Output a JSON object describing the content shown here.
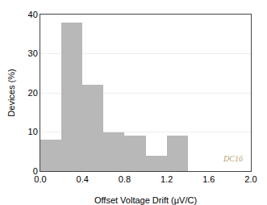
{
  "chart_data": {
    "type": "histogram",
    "xlabel": "Offset Voltage Drift (μV/C)",
    "ylabel": "Devices (%)",
    "bins": [
      0.0,
      0.2,
      0.4,
      0.6,
      0.8,
      1.0,
      1.2,
      1.4
    ],
    "values": [
      8,
      38,
      22,
      10,
      9,
      4,
      9
    ],
    "color": "#b8b8b8",
    "xlim": [
      0,
      2.0
    ],
    "ylim": [
      0,
      40
    ],
    "xticks": [
      {
        "value": 0,
        "label": "0.0"
      },
      0.4,
      0.8,
      1.2,
      1.6,
      {
        "value": 2.0,
        "label": "2.0"
      }
    ],
    "yticks": [
      0,
      10,
      20,
      30,
      40
    ],
    "grid": "y",
    "annotations": [
      {
        "text": "DC16",
        "color": "#b8a070"
      }
    ]
  }
}
